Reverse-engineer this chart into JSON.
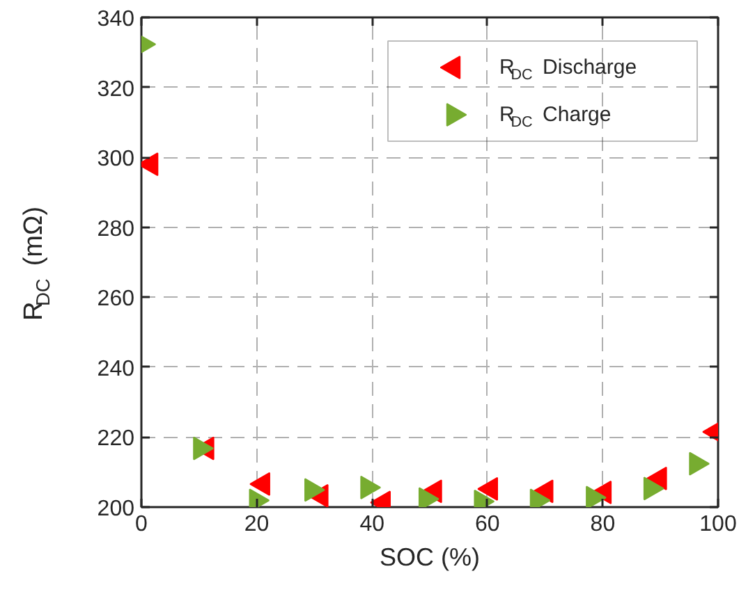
{
  "chart_data": {
    "type": "scatter",
    "xlabel": "SOC (%)",
    "ylabel": "R$_{DC}$ (mΩ)",
    "xlim": [
      0,
      100
    ],
    "ylim": [
      200,
      340
    ],
    "xticks": [
      0,
      20,
      40,
      60,
      80,
      100
    ],
    "yticks": [
      200,
      220,
      240,
      260,
      280,
      300,
      320,
      340
    ],
    "grid": true,
    "legend": "top right",
    "marker": "triangle",
    "series": [
      {
        "name": "R$_{DC}$ Discharge",
        "color": "#ff0000",
        "x": [
          1.7,
          11.4,
          21.1,
          31.2,
          42.0,
          50.9,
          60.6,
          70.2,
          80.3,
          89.9,
          99.6
        ],
        "values": [
          298,
          216.8,
          206.6,
          203.2,
          201.3,
          204.5,
          205.2,
          204.5,
          204.2,
          208.2,
          221.5
        ]
      },
      {
        "name": "R$_{DC}$ Charge",
        "color": "#77ac30",
        "x": [
          0.2,
          10.2,
          19.9,
          29.5,
          39.2,
          49.3,
          58.9,
          68.6,
          78.3,
          88.3,
          96.2
        ],
        "values": [
          332.3,
          216.8,
          201.9,
          204.9,
          205.6,
          202.3,
          201.6,
          201.9,
          202.7,
          205.3,
          212.4
        ]
      }
    ]
  }
}
